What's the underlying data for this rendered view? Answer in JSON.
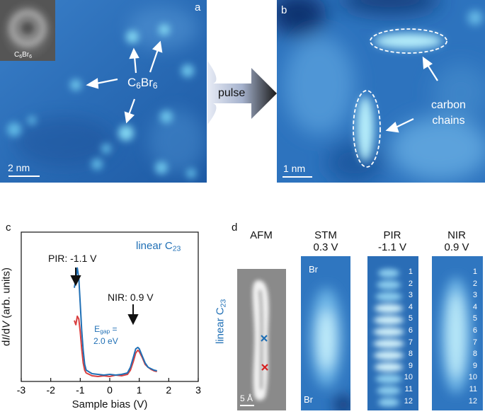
{
  "panels": {
    "a": {
      "letter": "a",
      "inset_label": "C",
      "inset_sub1": "6",
      "inset_mid": "Br",
      "inset_sub2": "6",
      "mol_main": "C",
      "mol_sub1": "6",
      "mol_mid": "Br",
      "mol_sub2": "6",
      "scale_bar": "2 nm"
    },
    "arrow": {
      "label": "pulse"
    },
    "b": {
      "letter": "b",
      "annotation_line1": "carbon",
      "annotation_line2": "chains",
      "scale_bar": "1 nm"
    },
    "c": {
      "letter": "c",
      "legend_main": "linear C",
      "legend_sub": "23",
      "pir_label": "PIR: -1.1 V",
      "nir_label": "NIR: 0.9 V",
      "egap_main": "E",
      "egap_sub": "gap",
      "egap_eq": " =",
      "egap_value": "2.0 eV",
      "ylabel_pre": "d",
      "ylabel_I": "I",
      "ylabel_slash": "/d",
      "ylabel_V": "V",
      "ylabel_post": " (arb. units)",
      "xlabel": "Sample bias (V)"
    },
    "d": {
      "letter": "d",
      "side_main": "linear C",
      "side_sub": "23",
      "afm_title": "AFM",
      "afm_scale": "5 Å",
      "stm_title": "STM",
      "stm_sub": "0.3 V",
      "pir_title": "PIR",
      "pir_sub": "-1.1 V",
      "nir_title": "NIR",
      "nir_sub": "0.9 V",
      "br_top": "Br",
      "br_bottom": "Br",
      "pir_numbers": [
        "1",
        "2",
        "3",
        "4",
        "5",
        "6",
        "7",
        "8",
        "9",
        "10",
        "11",
        "12"
      ],
      "nir_numbers": [
        "1",
        "2",
        "3",
        "4",
        "5",
        "6",
        "7",
        "8",
        "9",
        "10",
        "11",
        "12"
      ]
    }
  },
  "chart_data": {
    "type": "line",
    "xlabel": "Sample bias (V)",
    "ylabel": "dI/dV (arb. units)",
    "xlim": [
      -3,
      3
    ],
    "xticks": [
      -3,
      -2,
      -1,
      0,
      1,
      2,
      3
    ],
    "grid": false,
    "legend": "top-right",
    "series": [
      {
        "name": "linear C23",
        "color": "#1f6fb5",
        "points": [
          [
            -1.2,
            0.66
          ],
          [
            -1.15,
            0.72
          ],
          [
            -1.1,
            0.8
          ],
          [
            -1.05,
            0.73
          ],
          [
            -1.0,
            0.55
          ],
          [
            -0.95,
            0.36
          ],
          [
            -0.9,
            0.22
          ],
          [
            -0.85,
            0.12
          ],
          [
            -0.8,
            0.08
          ],
          [
            -0.6,
            0.055
          ],
          [
            -0.4,
            0.05
          ],
          [
            -0.2,
            0.045
          ],
          [
            0.0,
            0.05
          ],
          [
            0.2,
            0.045
          ],
          [
            0.4,
            0.05
          ],
          [
            0.6,
            0.06
          ],
          [
            0.7,
            0.1
          ],
          [
            0.8,
            0.17
          ],
          [
            0.88,
            0.23
          ],
          [
            0.95,
            0.24
          ],
          [
            1.0,
            0.23
          ],
          [
            1.1,
            0.18
          ],
          [
            1.2,
            0.13
          ],
          [
            1.3,
            0.1
          ],
          [
            1.4,
            0.09
          ],
          [
            1.5,
            0.08
          ],
          [
            1.6,
            0.075
          ]
        ]
      },
      {
        "color": "#d94040",
        "points": [
          [
            -1.2,
            0.43
          ],
          [
            -1.15,
            0.4
          ],
          [
            -1.1,
            0.46
          ],
          [
            -1.05,
            0.44
          ],
          [
            -1.0,
            0.35
          ],
          [
            -0.95,
            0.23
          ],
          [
            -0.9,
            0.13
          ],
          [
            -0.85,
            0.08
          ],
          [
            -0.8,
            0.06
          ],
          [
            -0.6,
            0.04
          ],
          [
            -0.4,
            0.035
          ],
          [
            -0.2,
            0.04
          ],
          [
            0.0,
            0.035
          ],
          [
            0.2,
            0.045
          ],
          [
            0.4,
            0.04
          ],
          [
            0.6,
            0.05
          ],
          [
            0.7,
            0.08
          ],
          [
            0.8,
            0.14
          ],
          [
            0.88,
            0.2
          ],
          [
            0.95,
            0.22
          ],
          [
            1.0,
            0.21
          ],
          [
            1.1,
            0.17
          ],
          [
            1.2,
            0.12
          ],
          [
            1.3,
            0.1
          ],
          [
            1.4,
            0.085
          ],
          [
            1.5,
            0.075
          ],
          [
            1.6,
            0.07
          ]
        ]
      }
    ]
  }
}
